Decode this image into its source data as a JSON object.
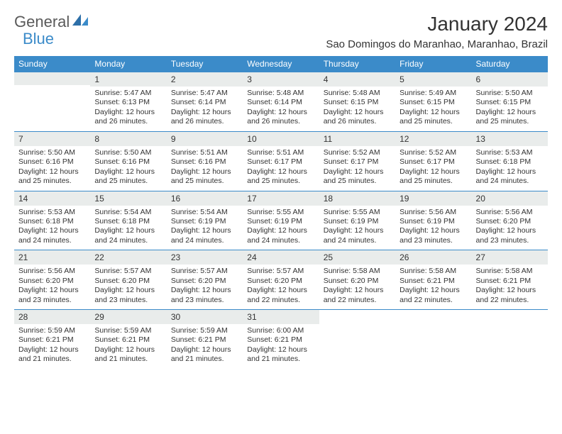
{
  "logo": {
    "word1": "General",
    "word2": "Blue"
  },
  "title": "January 2024",
  "subtitle": "Sao Domingos do Maranhao, Maranhao, Brazil",
  "colors": {
    "header_bg": "#3b8bc9",
    "header_fg": "#ffffff",
    "daynum_bg": "#e9eceb",
    "border": "#3b8bc9",
    "text": "#333333",
    "logo_gray": "#5a5a5a",
    "logo_blue": "#3b8bc9"
  },
  "day_headers": [
    "Sunday",
    "Monday",
    "Tuesday",
    "Wednesday",
    "Thursday",
    "Friday",
    "Saturday"
  ],
  "start_offset": 1,
  "days": [
    {
      "n": 1,
      "sr": "5:47 AM",
      "ss": "6:13 PM",
      "dl": "12 hours and 26 minutes."
    },
    {
      "n": 2,
      "sr": "5:47 AM",
      "ss": "6:14 PM",
      "dl": "12 hours and 26 minutes."
    },
    {
      "n": 3,
      "sr": "5:48 AM",
      "ss": "6:14 PM",
      "dl": "12 hours and 26 minutes."
    },
    {
      "n": 4,
      "sr": "5:48 AM",
      "ss": "6:15 PM",
      "dl": "12 hours and 26 minutes."
    },
    {
      "n": 5,
      "sr": "5:49 AM",
      "ss": "6:15 PM",
      "dl": "12 hours and 25 minutes."
    },
    {
      "n": 6,
      "sr": "5:50 AM",
      "ss": "6:15 PM",
      "dl": "12 hours and 25 minutes."
    },
    {
      "n": 7,
      "sr": "5:50 AM",
      "ss": "6:16 PM",
      "dl": "12 hours and 25 minutes."
    },
    {
      "n": 8,
      "sr": "5:50 AM",
      "ss": "6:16 PM",
      "dl": "12 hours and 25 minutes."
    },
    {
      "n": 9,
      "sr": "5:51 AM",
      "ss": "6:16 PM",
      "dl": "12 hours and 25 minutes."
    },
    {
      "n": 10,
      "sr": "5:51 AM",
      "ss": "6:17 PM",
      "dl": "12 hours and 25 minutes."
    },
    {
      "n": 11,
      "sr": "5:52 AM",
      "ss": "6:17 PM",
      "dl": "12 hours and 25 minutes."
    },
    {
      "n": 12,
      "sr": "5:52 AM",
      "ss": "6:17 PM",
      "dl": "12 hours and 25 minutes."
    },
    {
      "n": 13,
      "sr": "5:53 AM",
      "ss": "6:18 PM",
      "dl": "12 hours and 24 minutes."
    },
    {
      "n": 14,
      "sr": "5:53 AM",
      "ss": "6:18 PM",
      "dl": "12 hours and 24 minutes."
    },
    {
      "n": 15,
      "sr": "5:54 AM",
      "ss": "6:18 PM",
      "dl": "12 hours and 24 minutes."
    },
    {
      "n": 16,
      "sr": "5:54 AM",
      "ss": "6:19 PM",
      "dl": "12 hours and 24 minutes."
    },
    {
      "n": 17,
      "sr": "5:55 AM",
      "ss": "6:19 PM",
      "dl": "12 hours and 24 minutes."
    },
    {
      "n": 18,
      "sr": "5:55 AM",
      "ss": "6:19 PM",
      "dl": "12 hours and 24 minutes."
    },
    {
      "n": 19,
      "sr": "5:56 AM",
      "ss": "6:19 PM",
      "dl": "12 hours and 23 minutes."
    },
    {
      "n": 20,
      "sr": "5:56 AM",
      "ss": "6:20 PM",
      "dl": "12 hours and 23 minutes."
    },
    {
      "n": 21,
      "sr": "5:56 AM",
      "ss": "6:20 PM",
      "dl": "12 hours and 23 minutes."
    },
    {
      "n": 22,
      "sr": "5:57 AM",
      "ss": "6:20 PM",
      "dl": "12 hours and 23 minutes."
    },
    {
      "n": 23,
      "sr": "5:57 AM",
      "ss": "6:20 PM",
      "dl": "12 hours and 23 minutes."
    },
    {
      "n": 24,
      "sr": "5:57 AM",
      "ss": "6:20 PM",
      "dl": "12 hours and 22 minutes."
    },
    {
      "n": 25,
      "sr": "5:58 AM",
      "ss": "6:20 PM",
      "dl": "12 hours and 22 minutes."
    },
    {
      "n": 26,
      "sr": "5:58 AM",
      "ss": "6:21 PM",
      "dl": "12 hours and 22 minutes."
    },
    {
      "n": 27,
      "sr": "5:58 AM",
      "ss": "6:21 PM",
      "dl": "12 hours and 22 minutes."
    },
    {
      "n": 28,
      "sr": "5:59 AM",
      "ss": "6:21 PM",
      "dl": "12 hours and 21 minutes."
    },
    {
      "n": 29,
      "sr": "5:59 AM",
      "ss": "6:21 PM",
      "dl": "12 hours and 21 minutes."
    },
    {
      "n": 30,
      "sr": "5:59 AM",
      "ss": "6:21 PM",
      "dl": "12 hours and 21 minutes."
    },
    {
      "n": 31,
      "sr": "6:00 AM",
      "ss": "6:21 PM",
      "dl": "12 hours and 21 minutes."
    }
  ],
  "labels": {
    "sunrise_prefix": "Sunrise: ",
    "sunset_prefix": "Sunset: ",
    "daylight_prefix": "Daylight: "
  }
}
